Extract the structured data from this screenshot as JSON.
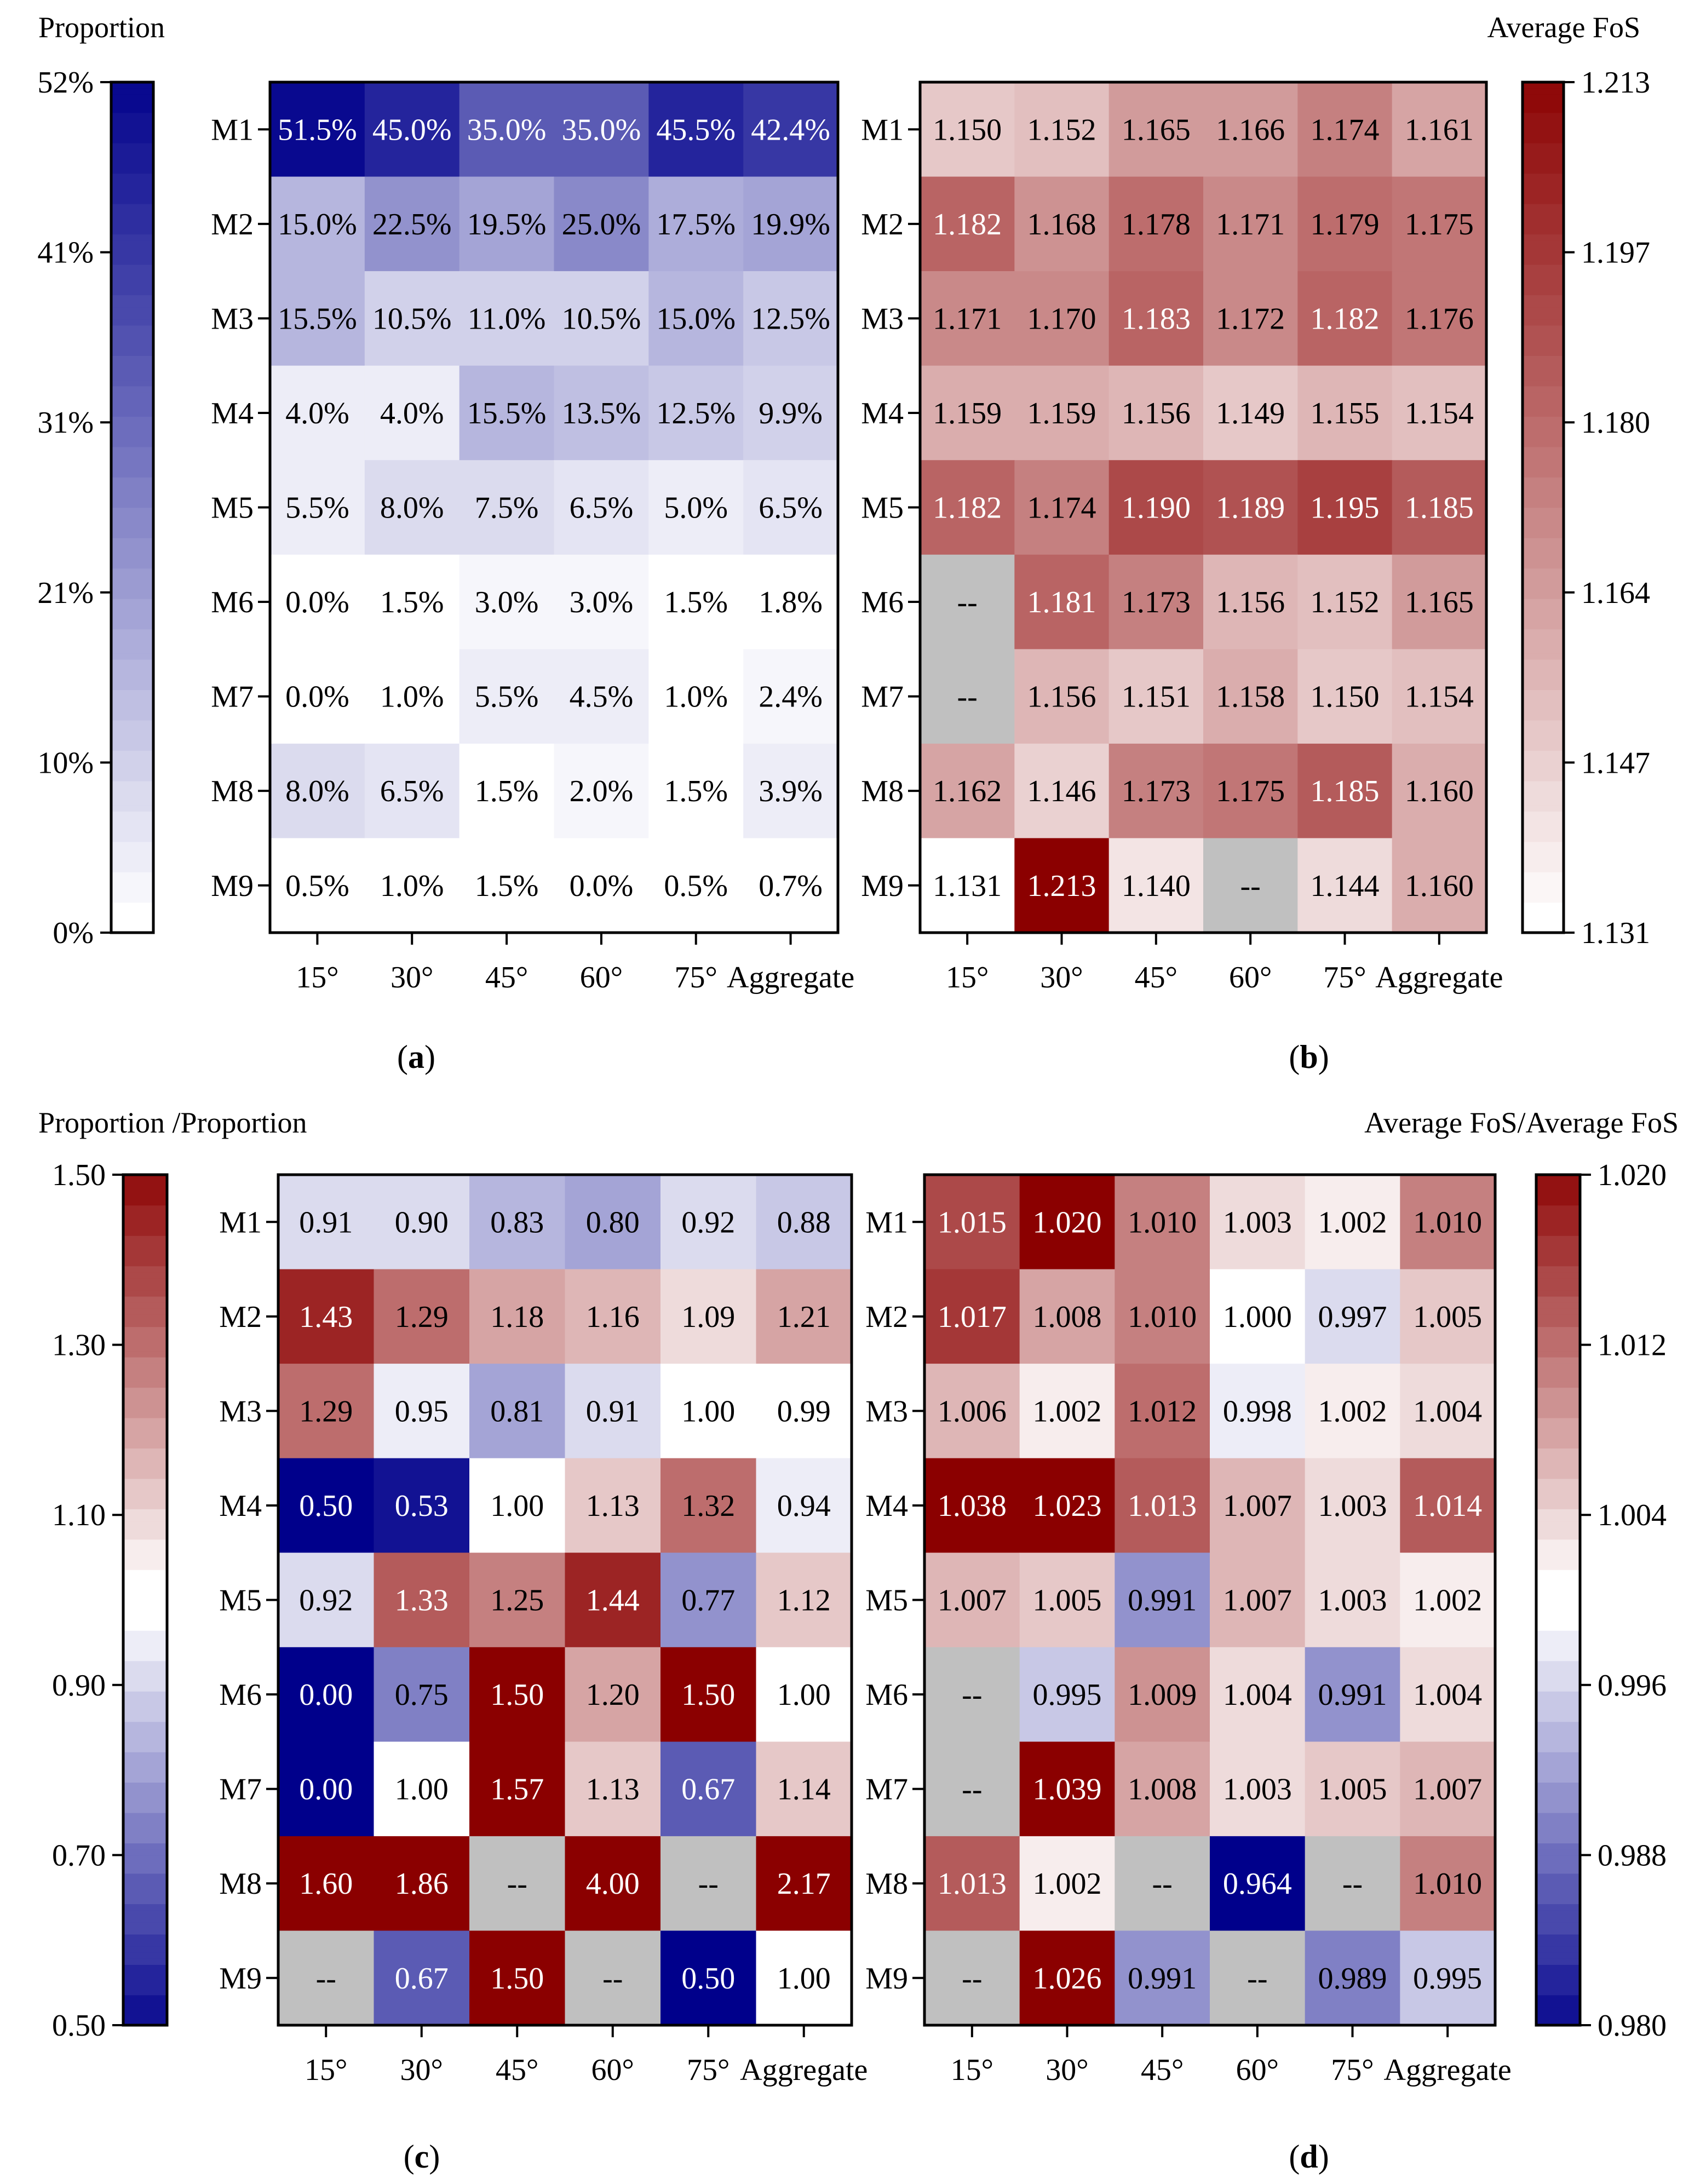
{
  "chart_data": [
    {
      "type": "heatmap",
      "panel_label": "a",
      "title": "Proportion",
      "xlabel": "",
      "ylabel": "",
      "columns": [
        "15°",
        "30°",
        "45°",
        "60°",
        "75°",
        "Aggregate"
      ],
      "rows": [
        "M1",
        "M2",
        "M3",
        "M4",
        "M5",
        "M6",
        "M7",
        "M8",
        "M9"
      ],
      "values": [
        [
          51.5,
          45.0,
          35.0,
          35.0,
          45.5,
          42.4
        ],
        [
          15.0,
          22.5,
          19.5,
          25.0,
          17.5,
          19.9
        ],
        [
          15.5,
          10.5,
          11.0,
          10.5,
          15.0,
          12.5
        ],
        [
          4.0,
          4.0,
          15.5,
          13.5,
          12.5,
          9.9
        ],
        [
          5.5,
          8.0,
          7.5,
          6.5,
          5.0,
          6.5
        ],
        [
          0.0,
          1.5,
          3.0,
          3.0,
          1.5,
          1.8
        ],
        [
          0.0,
          1.0,
          5.5,
          4.5,
          1.0,
          2.4
        ],
        [
          8.0,
          6.5,
          1.5,
          2.0,
          1.5,
          3.9
        ],
        [
          0.5,
          1.0,
          1.5,
          0.0,
          0.5,
          0.7
        ]
      ],
      "labels": [
        [
          "51.5%",
          "45.0%",
          "35.0%",
          "35.0%",
          "45.5%",
          "42.4%"
        ],
        [
          "15.0%",
          "22.5%",
          "19.5%",
          "25.0%",
          "17.5%",
          "19.9%"
        ],
        [
          "15.5%",
          "10.5%",
          "11.0%",
          "10.5%",
          "15.0%",
          "12.5%"
        ],
        [
          "4.0%",
          "4.0%",
          "15.5%",
          "13.5%",
          "12.5%",
          "9.9%"
        ],
        [
          "5.5%",
          "8.0%",
          "7.5%",
          "6.5%",
          "5.0%",
          "6.5%"
        ],
        [
          "0.0%",
          "1.5%",
          "3.0%",
          "3.0%",
          "1.5%",
          "1.8%"
        ],
        [
          "0.0%",
          "1.0%",
          "5.5%",
          "4.5%",
          "1.0%",
          "2.4%"
        ],
        [
          "8.0%",
          "6.5%",
          "1.5%",
          "2.0%",
          "1.5%",
          "3.9%"
        ],
        [
          "0.5%",
          "1.0%",
          "1.5%",
          "0.0%",
          "0.5%",
          "0.7%"
        ]
      ],
      "colormap": "white-blue",
      "color_range": [
        0,
        52
      ],
      "colorbar_ticks": [
        "0%",
        "10%",
        "21%",
        "31%",
        "41%",
        "52%"
      ],
      "colorbar_side": "left"
    },
    {
      "type": "heatmap",
      "panel_label": "b",
      "title": "Average  FoS",
      "xlabel": "",
      "ylabel": "",
      "columns": [
        "15°",
        "30°",
        "45°",
        "60°",
        "75°",
        "Aggregate"
      ],
      "rows": [
        "M1",
        "M2",
        "M3",
        "M4",
        "M5",
        "M6",
        "M7",
        "M8",
        "M9"
      ],
      "values": [
        [
          1.15,
          1.152,
          1.165,
          1.166,
          1.174,
          1.161
        ],
        [
          1.182,
          1.168,
          1.178,
          1.171,
          1.179,
          1.175
        ],
        [
          1.171,
          1.17,
          1.183,
          1.172,
          1.182,
          1.176
        ],
        [
          1.159,
          1.159,
          1.156,
          1.149,
          1.155,
          1.154
        ],
        [
          1.182,
          1.174,
          1.19,
          1.189,
          1.195,
          1.185
        ],
        [
          null,
          1.181,
          1.173,
          1.156,
          1.152,
          1.165
        ],
        [
          null,
          1.156,
          1.151,
          1.158,
          1.15,
          1.154
        ],
        [
          1.162,
          1.146,
          1.173,
          1.175,
          1.185,
          1.16
        ],
        [
          1.131,
          1.213,
          1.14,
          null,
          1.144,
          1.16
        ]
      ],
      "labels": [
        [
          "1.150",
          "1.152",
          "1.165",
          "1.166",
          "1.174",
          "1.161"
        ],
        [
          "1.182",
          "1.168",
          "1.178",
          "1.171",
          "1.179",
          "1.175"
        ],
        [
          "1.171",
          "1.170",
          "1.183",
          "1.172",
          "1.182",
          "1.176"
        ],
        [
          "1.159",
          "1.159",
          "1.156",
          "1.149",
          "1.155",
          "1.154"
        ],
        [
          "1.182",
          "1.174",
          "1.190",
          "1.189",
          "1.195",
          "1.185"
        ],
        [
          "--",
          "1.181",
          "1.173",
          "1.156",
          "1.152",
          "1.165"
        ],
        [
          "--",
          "1.156",
          "1.151",
          "1.158",
          "1.150",
          "1.154"
        ],
        [
          "1.162",
          "1.146",
          "1.173",
          "1.175",
          "1.185",
          "1.160"
        ],
        [
          "1.131",
          "1.213",
          "1.140",
          "--",
          "1.144",
          "1.160"
        ]
      ],
      "colormap": "white-red",
      "color_range": [
        1.131,
        1.213
      ],
      "colorbar_ticks": [
        "1.131",
        "1.147",
        "1.164",
        "1.180",
        "1.197",
        "1.213"
      ],
      "colorbar_side": "right",
      "missing_label": "--"
    },
    {
      "type": "heatmap",
      "panel_label": "c",
      "title": "Proportion /Proportion",
      "xlabel": "",
      "ylabel": "",
      "columns": [
        "15°",
        "30°",
        "45°",
        "60°",
        "75°",
        "Aggregate"
      ],
      "rows": [
        "M1",
        "M2",
        "M3",
        "M4",
        "M5",
        "M6",
        "M7",
        "M8",
        "M9"
      ],
      "values": [
        [
          0.91,
          0.9,
          0.83,
          0.8,
          0.92,
          0.88
        ],
        [
          1.43,
          1.29,
          1.18,
          1.16,
          1.09,
          1.21
        ],
        [
          1.29,
          0.95,
          0.81,
          0.91,
          1.0,
          0.99
        ],
        [
          0.5,
          0.53,
          1.0,
          1.13,
          1.32,
          0.94
        ],
        [
          0.92,
          1.33,
          1.25,
          1.44,
          0.77,
          1.12
        ],
        [
          0.0,
          0.75,
          1.5,
          1.2,
          1.5,
          1.0
        ],
        [
          0.0,
          1.0,
          1.57,
          1.13,
          0.67,
          1.14
        ],
        [
          1.6,
          1.86,
          null,
          4.0,
          null,
          2.17
        ],
        [
          null,
          0.67,
          1.5,
          null,
          0.5,
          1.0
        ]
      ],
      "labels": [
        [
          "0.91",
          "0.90",
          "0.83",
          "0.80",
          "0.92",
          "0.88"
        ],
        [
          "1.43",
          "1.29",
          "1.18",
          "1.16",
          "1.09",
          "1.21"
        ],
        [
          "1.29",
          "0.95",
          "0.81",
          "0.91",
          "1.00",
          "0.99"
        ],
        [
          "0.50",
          "0.53",
          "1.00",
          "1.13",
          "1.32",
          "0.94"
        ],
        [
          "0.92",
          "1.33",
          "1.25",
          "1.44",
          "0.77",
          "1.12"
        ],
        [
          "0.00",
          "0.75",
          "1.50",
          "1.20",
          "1.50",
          "1.00"
        ],
        [
          "0.00",
          "1.00",
          "1.57",
          "1.13",
          "0.67",
          "1.14"
        ],
        [
          "1.60",
          "1.86",
          "--",
          "4.00",
          "--",
          "2.17"
        ],
        [
          "--",
          "0.67",
          "1.50",
          "--",
          "0.50",
          "1.00"
        ]
      ],
      "colormap": "blue-white-red",
      "color_range": [
        0.5,
        1.5
      ],
      "color_center": 1.0,
      "colorbar_ticks": [
        "0.50",
        "0.70",
        "0.90",
        "1.10",
        "1.30",
        "1.50"
      ],
      "colorbar_side": "left",
      "missing_label": "--"
    },
    {
      "type": "heatmap",
      "panel_label": "d",
      "title": "Average  FoS/Average  FoS",
      "xlabel": "",
      "ylabel": "",
      "columns": [
        "15°",
        "30°",
        "45°",
        "60°",
        "75°",
        "Aggregate"
      ],
      "rows": [
        "M1",
        "M2",
        "M3",
        "M4",
        "M5",
        "M6",
        "M7",
        "M8",
        "M9"
      ],
      "values": [
        [
          1.015,
          1.02,
          1.01,
          1.003,
          1.002,
          1.01
        ],
        [
          1.017,
          1.008,
          1.01,
          1.0,
          0.997,
          1.005
        ],
        [
          1.006,
          1.002,
          1.012,
          0.998,
          1.002,
          1.004
        ],
        [
          1.038,
          1.023,
          1.013,
          1.007,
          1.003,
          1.014
        ],
        [
          1.007,
          1.005,
          0.991,
          1.007,
          1.003,
          1.002
        ],
        [
          null,
          0.995,
          1.009,
          1.004,
          0.991,
          1.004
        ],
        [
          null,
          1.039,
          1.008,
          1.003,
          1.005,
          1.007
        ],
        [
          1.013,
          1.002,
          null,
          0.964,
          null,
          1.01
        ],
        [
          null,
          1.026,
          0.991,
          null,
          0.989,
          0.995
        ]
      ],
      "labels": [
        [
          "1.015",
          "1.020",
          "1.010",
          "1.003",
          "1.002",
          "1.010"
        ],
        [
          "1.017",
          "1.008",
          "1.010",
          "1.000",
          "0.997",
          "1.005"
        ],
        [
          "1.006",
          "1.002",
          "1.012",
          "0.998",
          "1.002",
          "1.004"
        ],
        [
          "1.038",
          "1.023",
          "1.013",
          "1.007",
          "1.003",
          "1.014"
        ],
        [
          "1.007",
          "1.005",
          "0.991",
          "1.007",
          "1.003",
          "1.002"
        ],
        [
          "--",
          "0.995",
          "1.009",
          "1.004",
          "0.991",
          "1.004"
        ],
        [
          "--",
          "1.039",
          "1.008",
          "1.003",
          "1.005",
          "1.007"
        ],
        [
          "1.013",
          "1.002",
          "--",
          "0.964",
          "--",
          "1.010"
        ],
        [
          "--",
          "1.026",
          "0.991",
          "--",
          "0.989",
          "0.995"
        ]
      ],
      "colormap": "blue-white-red",
      "color_range": [
        0.98,
        1.02
      ],
      "color_center": 1.0,
      "colorbar_ticks": [
        "0.980",
        "0.988",
        "0.996",
        "1.004",
        "1.012",
        "1.020"
      ],
      "colorbar_side": "right",
      "missing_label": "--"
    }
  ],
  "colors": {
    "blue_max": "#00008b",
    "red_max": "#8b0000",
    "missing": "#c0c0c0",
    "text_dark": "#000000",
    "text_light": "#ffffff"
  }
}
